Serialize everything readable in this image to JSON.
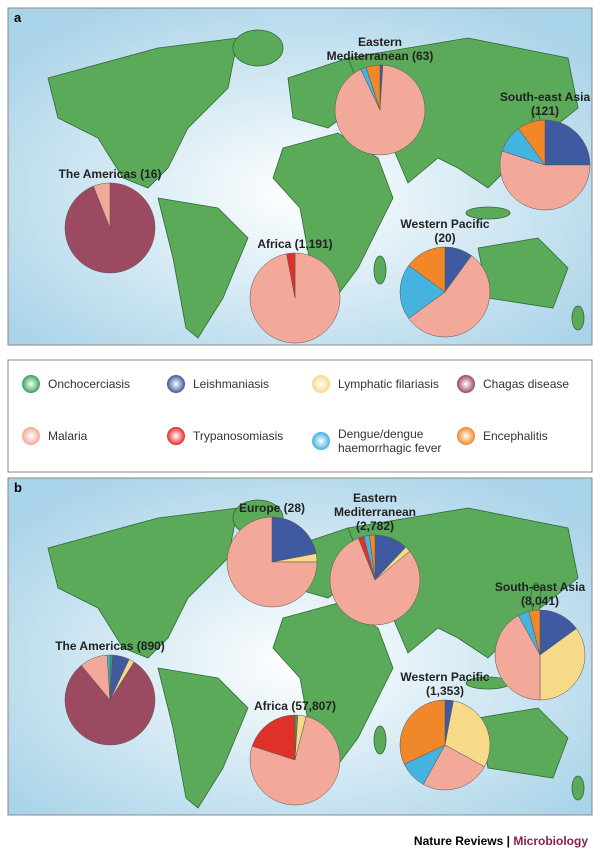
{
  "panel_labels": [
    "a",
    "b"
  ],
  "legend": {
    "labels": [
      "Onchocerciasis",
      "Leishmaniasis",
      "Lymphatic filariasis",
      "Chagas disease",
      "Malaria",
      "Trypanosomiasis",
      "Dengue/dengue haemorrhagic fever",
      "Encephalitis"
    ],
    "colors": [
      "#3aa55a",
      "#3f5aa0",
      "#f7d98a",
      "#9c4a62",
      "#f2a99a",
      "#e0302a",
      "#45b3e0",
      "#f0882a"
    ]
  },
  "chart_data": [
    {
      "type": "pie",
      "title": "Eastern Mediterranean (63)",
      "values": [
        0,
        1,
        0,
        0,
        92,
        0,
        2,
        5
      ]
    },
    {
      "type": "pie",
      "title": "South-east Asia (121)",
      "values": [
        0,
        25,
        0,
        0,
        55,
        0,
        10,
        10
      ]
    },
    {
      "type": "pie",
      "title": "The Americas (16)",
      "values": [
        0,
        0,
        0,
        94,
        6,
        0,
        0,
        0
      ]
    },
    {
      "type": "pie",
      "title": "Africa (1,191)",
      "values": [
        0,
        0,
        0,
        0,
        97,
        3,
        0,
        0
      ]
    },
    {
      "type": "pie",
      "title": "Western Pacific (20)",
      "values": [
        0,
        10,
        0,
        0,
        55,
        0,
        20,
        15
      ]
    },
    {
      "type": "pie",
      "title": "Europe (28)",
      "values": [
        0,
        22,
        3,
        0,
        75,
        0,
        0,
        0
      ]
    },
    {
      "type": "pie",
      "title": "Eastern Mediterranean (2,782)",
      "values": [
        0,
        12,
        2,
        0,
        80,
        2,
        2,
        2
      ]
    },
    {
      "type": "pie",
      "title": "South-east Asia (8,041)",
      "values": [
        0,
        15,
        35,
        0,
        42,
        0,
        4,
        4
      ]
    },
    {
      "type": "pie",
      "title": "The Americas (890)",
      "values": [
        1,
        6,
        2,
        80,
        10,
        0,
        1,
        0
      ]
    },
    {
      "type": "pie",
      "title": "Africa (57,807)",
      "values": [
        1,
        0,
        3,
        0,
        76,
        20,
        0,
        0
      ]
    },
    {
      "type": "pie",
      "title": "Western Pacific (1,353)",
      "values": [
        0,
        3,
        30,
        0,
        25,
        0,
        10,
        32
      ]
    }
  ],
  "footer": {
    "journal": "Nature Reviews",
    "separator": "|",
    "subject": "Microbiology"
  }
}
